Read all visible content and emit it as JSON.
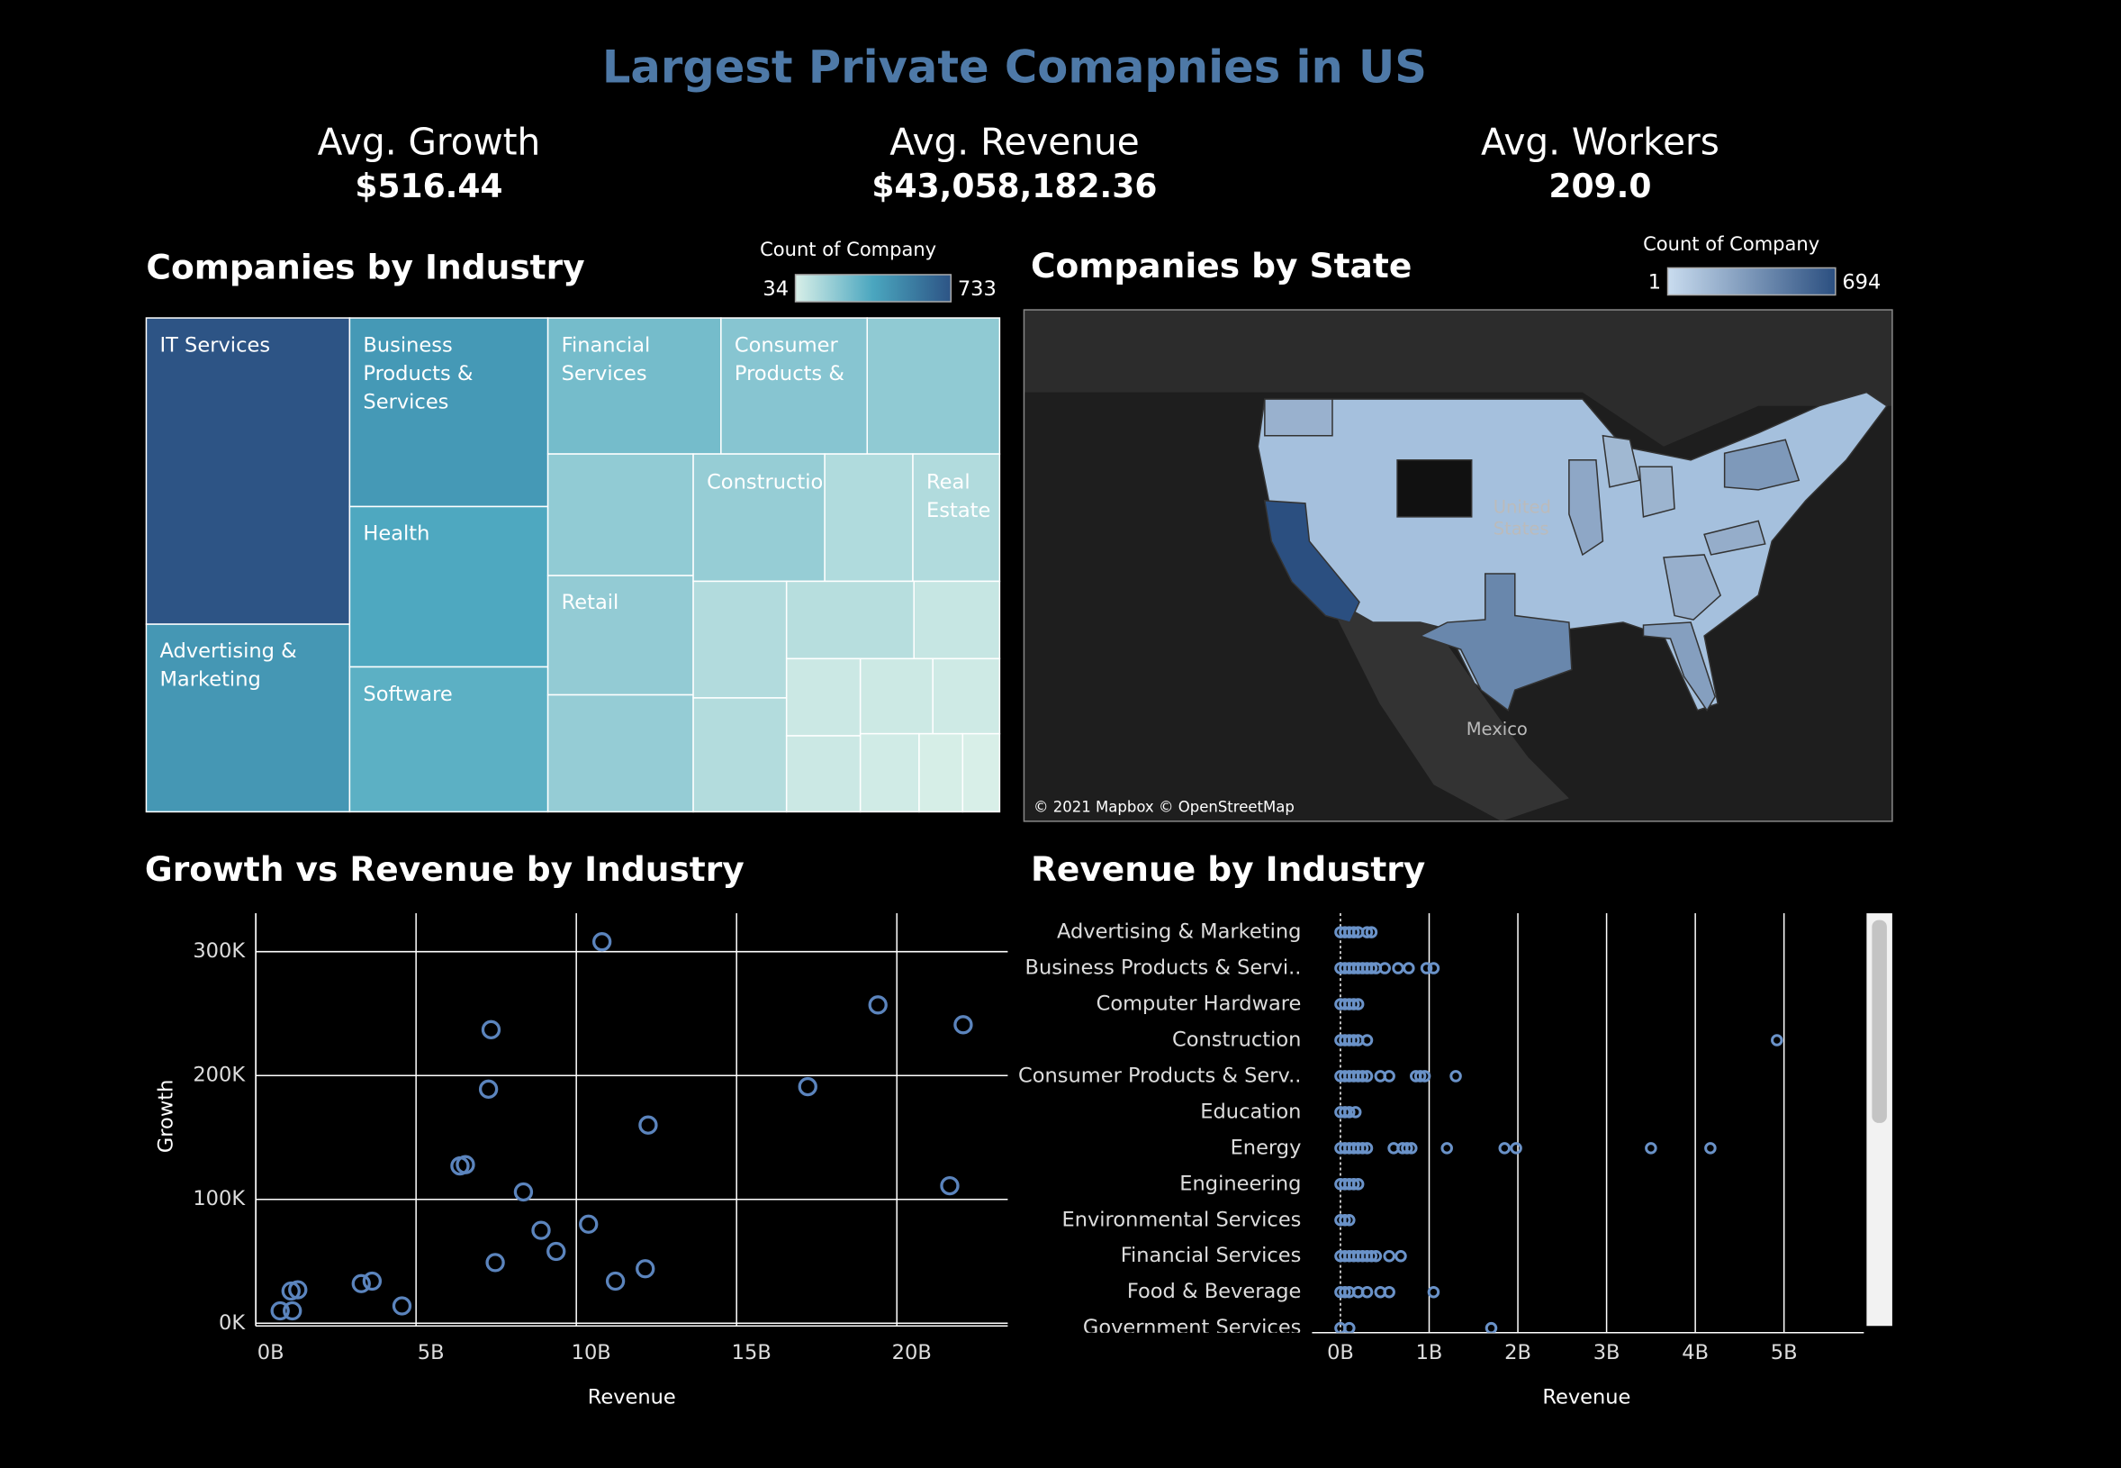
{
  "header": {
    "title": "Largest Private Comapnies in US"
  },
  "kpis": [
    {
      "label": "Avg. Growth",
      "value": "$516.44"
    },
    {
      "label": "Avg. Revenue",
      "value": "$43,058,182.36"
    },
    {
      "label": "Avg. Workers",
      "value": "209.0"
    }
  ],
  "chart_data": [
    {
      "type": "treemap",
      "title": "Companies by Industry",
      "legend_title": "Count of Company",
      "color_domain": [
        34,
        733
      ],
      "colors": [
        "#d8efe8",
        "#4aa6bf",
        "#2d5485"
      ],
      "categories": [
        "IT Services",
        "Advertising & Marketing",
        "Business Products & Services",
        "Health",
        "Software",
        "Financial Services",
        "Consumer Products &",
        null,
        null,
        "Retail",
        null,
        "Construction",
        null,
        "Real Estate",
        null,
        null,
        null,
        null,
        null,
        null,
        null,
        null,
        null,
        null,
        null
      ],
      "values": [
        733,
        449,
        440,
        374,
        338,
        277,
        234,
        212,
        208,
        204,
        200,
        197,
        132,
        130,
        128,
        125,
        116,
        78,
        67,
        66,
        64,
        59,
        54,
        40,
        34
      ]
    },
    {
      "type": "choropleth",
      "title": "Companies by State",
      "legend_title": "Count of Company",
      "color_domain": [
        1,
        694
      ],
      "colors": [
        "#c9dcef",
        "#2b4f80"
      ],
      "values": [
        694,
        420,
        300,
        330,
        260,
        220,
        230,
        200,
        180,
        210
      ],
      "place_labels": [
        "United States",
        "Mexico"
      ],
      "attribution": "© 2021 Mapbox © OpenStreetMap"
    },
    {
      "type": "scatter",
      "title": "Growth vs Revenue by Industry",
      "xlabel": "Revenue",
      "ylabel": "Growth",
      "color": "#5b84bd",
      "grid": true,
      "x": [
        10800000000,
        19410000000,
        22070000000,
        7340000000,
        7260000000,
        17220000000,
        12240000000,
        6370000000,
        6540000000,
        8350000000,
        21650000000,
        8900000000,
        10380000000,
        9370000000,
        7470000000,
        11220000000,
        12150000000,
        4560000000,
        3290000000,
        3630000000,
        1100000000,
        1310000000,
        760000000,
        1140000000
      ],
      "y": [
        308000,
        257000,
        241000,
        237000,
        189000,
        191000,
        160000,
        127000,
        128000,
        106000,
        111000,
        75000,
        80000,
        58000,
        49000,
        34000,
        44000,
        14000,
        32000,
        34000,
        26000,
        27000,
        10000,
        10000
      ],
      "xlim": [
        0,
        23460000000
      ],
      "ylim": [
        0,
        331000
      ],
      "xticks": [
        {
          "value": 0,
          "label": "0B"
        },
        {
          "value": 5000000000,
          "label": "5B"
        },
        {
          "value": 10000000000,
          "label": "10B"
        },
        {
          "value": 15000000000,
          "label": "15B"
        },
        {
          "value": 20000000000,
          "label": "20B"
        }
      ],
      "yticks": [
        {
          "value": 0,
          "label": "0K"
        },
        {
          "value": 100000,
          "label": "100K"
        },
        {
          "value": 200000,
          "label": "200K"
        },
        {
          "value": 300000,
          "label": "300K"
        }
      ]
    },
    {
      "type": "strip",
      "title": "Revenue by Industry",
      "xlabel": "Revenue",
      "color": "#6a92c8",
      "grid": true,
      "categories": [
        "Advertising & Marketing",
        "Business Products & Servi..",
        "Computer Hardware",
        "Construction",
        "Consumer Products & Serv..",
        "Education",
        "Energy",
        "Engineering",
        "Environmental Services",
        "Financial Services",
        "Food & Beverage",
        "Government Services"
      ],
      "values": [
        [
          0,
          50000000,
          100000000,
          150000000,
          200000000,
          300000000,
          350000000
        ],
        [
          0,
          50000000,
          100000000,
          150000000,
          200000000,
          250000000,
          300000000,
          350000000,
          400000000,
          500000000,
          650000000,
          770000000,
          970000000,
          1050000000
        ],
        [
          0,
          50000000,
          100000000,
          150000000,
          200000000
        ],
        [
          0,
          50000000,
          100000000,
          150000000,
          200000000,
          300000000,
          4920000000
        ],
        [
          0,
          50000000,
          100000000,
          150000000,
          200000000,
          250000000,
          300000000,
          450000000,
          550000000,
          850000000,
          900000000,
          950000000,
          1300000000
        ],
        [
          0,
          50000000,
          100000000,
          170000000
        ],
        [
          0,
          50000000,
          100000000,
          150000000,
          200000000,
          250000000,
          300000000,
          600000000,
          700000000,
          750000000,
          800000000,
          1200000000,
          1850000000,
          1980000000,
          3500000000,
          4170000000
        ],
        [
          0,
          50000000,
          100000000,
          150000000,
          200000000
        ],
        [
          0,
          50000000,
          100000000
        ],
        [
          0,
          50000000,
          100000000,
          150000000,
          200000000,
          250000000,
          300000000,
          350000000,
          400000000,
          550000000,
          680000000
        ],
        [
          0,
          50000000,
          100000000,
          200000000,
          300000000,
          450000000,
          550000000,
          1050000000
        ],
        [
          0,
          100000000,
          1700000000
        ]
      ],
      "xlim": [
        -320000000,
        5900000000
      ],
      "xticks": [
        {
          "value": 0,
          "label": "0B"
        },
        {
          "value": 1000000000,
          "label": "1B"
        },
        {
          "value": 2000000000,
          "label": "2B"
        },
        {
          "value": 3000000000,
          "label": "3B"
        },
        {
          "value": 4000000000,
          "label": "4B"
        },
        {
          "value": 5000000000,
          "label": "5B"
        }
      ]
    }
  ]
}
